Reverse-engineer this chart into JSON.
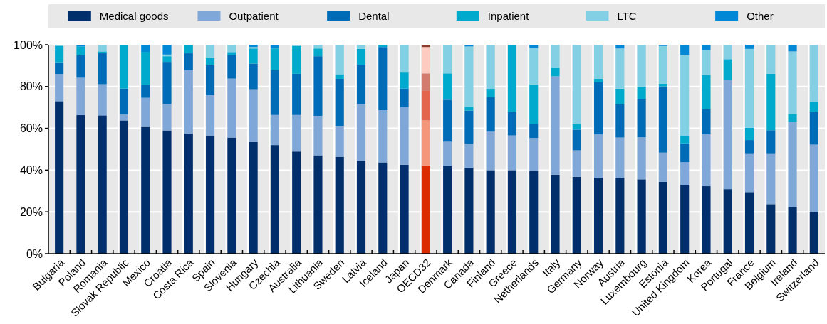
{
  "chart_data": {
    "type": "bar",
    "stacked": true,
    "grid": true,
    "legend": "top",
    "categories": [
      "Bulgaria",
      "Poland",
      "Romania",
      "Slovak Republic",
      "Mexico",
      "Croatia",
      "Costa Rica",
      "Spain",
      "Slovenia",
      "Hungary",
      "Czechia",
      "Australia",
      "Lithuania",
      "Sweden",
      "Latvia",
      "Iceland",
      "Japan",
      "OECD32",
      "Denmark",
      "Canada",
      "Finland",
      "Greece",
      "Netherlands",
      "Italy",
      "Germany",
      "Norway",
      "Austria",
      "Luxembourg",
      "Estonia",
      "United Kingdom",
      "Korea",
      "Portugal",
      "France",
      "Belgium",
      "Ireland",
      "Switzerland"
    ],
    "ylim": [
      0,
      100
    ],
    "yticks": [
      {
        "value": 0,
        "label": "0%"
      },
      {
        "value": 20,
        "label": "20%"
      },
      {
        "value": 40,
        "label": "40%"
      },
      {
        "value": 60,
        "label": "60%"
      },
      {
        "value": 80,
        "label": "80%"
      },
      {
        "value": 100,
        "label": "100%"
      }
    ],
    "series": [
      {
        "name": "Medical goods",
        "color": "#002f6c",
        "colors": [
          "#002f6c",
          "#002f6c",
          "#002f6c",
          "#002f6c",
          "#002f6c",
          "#002f6c",
          "#002f6c",
          "#002f6c",
          "#002f6c",
          "#002f6c",
          "#002f6c",
          "#002f6c",
          "#002f6c",
          "#002f6c",
          "#002f6c",
          "#002f6c",
          "#002f6c",
          "#dd2b00",
          "#002f6c",
          "#002f6c",
          "#002f6c",
          "#002f6c",
          "#002f6c",
          "#002f6c",
          "#002f6c",
          "#002f6c",
          "#002f6c",
          "#002f6c",
          "#002f6c",
          "#002f6c",
          "#002f6c",
          "#002f6c",
          "#002f6c",
          "#002f6c",
          "#002f6c",
          "#002f6c"
        ],
        "values": [
          73,
          66.4,
          66.2,
          63.8,
          60.7,
          59,
          57.6,
          56.3,
          55.6,
          53.5,
          52,
          48.9,
          47.1,
          46.4,
          44.5,
          43.7,
          42.6,
          42.2,
          42.2,
          41.2,
          40,
          40,
          39.5,
          37.5,
          36.8,
          36.4,
          36.4,
          35.6,
          34.4,
          33,
          32.3,
          30.9,
          29.5,
          23.7,
          22.4,
          20
        ]
      },
      {
        "name": "Outpatient",
        "color": "#7fa8d9",
        "colors": [
          "#7fa8d9",
          "#7fa8d9",
          "#7fa8d9",
          "#7fa8d9",
          "#7fa8d9",
          "#7fa8d9",
          "#7fa8d9",
          "#7fa8d9",
          "#7fa8d9",
          "#7fa8d9",
          "#7fa8d9",
          "#7fa8d9",
          "#7fa8d9",
          "#7fa8d9",
          "#7fa8d9",
          "#7fa8d9",
          "#7fa8d9",
          "#f4967a",
          "#7fa8d9",
          "#7fa8d9",
          "#7fa8d9",
          "#7fa8d9",
          "#7fa8d9",
          "#7fa8d9",
          "#7fa8d9",
          "#7fa8d9",
          "#7fa8d9",
          "#7fa8d9",
          "#7fa8d9",
          "#7fa8d9",
          "#7fa8d9",
          "#7fa8d9",
          "#7fa8d9",
          "#7fa8d9",
          "#7fa8d9",
          "#7fa8d9"
        ],
        "values": [
          13,
          17.8,
          14.9,
          2.8,
          13.9,
          12.7,
          30.2,
          19.6,
          28.2,
          25.2,
          14.4,
          17.5,
          18.9,
          14.8,
          27.2,
          25,
          27.5,
          21.6,
          11.4,
          11.4,
          18.4,
          16.6,
          15.9,
          47.4,
          12.7,
          20.7,
          19.2,
          20.1,
          14,
          10.8,
          24.8,
          52.2,
          18.2,
          24,
          40.5,
          32.2
        ]
      },
      {
        "name": "Dental",
        "color": "#006bb6",
        "colors": [
          "#006bb6",
          "#006bb6",
          "#006bb6",
          "#006bb6",
          "#006bb6",
          "#006bb6",
          "#006bb6",
          "#006bb6",
          "#006bb6",
          "#006bb6",
          "#006bb6",
          "#006bb6",
          "#006bb6",
          "#006bb6",
          "#006bb6",
          "#006bb6",
          "#006bb6",
          "#e4654d",
          "#006bb6",
          "#006bb6",
          "#006bb6",
          "#006bb6",
          "#006bb6",
          "#006bb6",
          "#006bb6",
          "#006bb6",
          "#006bb6",
          "#006bb6",
          "#006bb6",
          "#006bb6",
          "#006bb6",
          "#006bb6",
          "#006bb6",
          "#006bb6",
          "#006bb6",
          "#006bb6"
        ],
        "values": [
          5.6,
          10.8,
          14.8,
          12.4,
          6.2,
          20.1,
          8.1,
          14.4,
          11.4,
          12.3,
          21.4,
          19.7,
          28.5,
          22.5,
          18.6,
          30.2,
          8.9,
          14.1,
          20.1,
          15.9,
          16.5,
          11.2,
          6.8,
          0,
          9.9,
          25.1,
          15.9,
          18.3,
          31.7,
          9,
          12.1,
          0,
          6.7,
          11.4,
          0,
          15.6
        ]
      },
      {
        "name": "Inpatient",
        "color": "#00aacc",
        "colors": [
          "#00aacc",
          "#00aacc",
          "#00aacc",
          "#00aacc",
          "#00aacc",
          "#00aacc",
          "#00aacc",
          "#00aacc",
          "#00aacc",
          "#00aacc",
          "#00aacc",
          "#00aacc",
          "#00aacc",
          "#00aacc",
          "#00aacc",
          "#00aacc",
          "#00aacc",
          "#d37c6d",
          "#00aacc",
          "#00aacc",
          "#00aacc",
          "#00aacc",
          "#00aacc",
          "#00aacc",
          "#00aacc",
          "#00aacc",
          "#00aacc",
          "#00aacc",
          "#00aacc",
          "#00aacc",
          "#00aacc",
          "#00aacc",
          "#00aacc",
          "#00aacc",
          "#00aacc",
          "#00aacc"
        ],
        "values": [
          7.9,
          4.2,
          0.9,
          21,
          15.8,
          2.7,
          4.1,
          3.4,
          1.3,
          7.2,
          10.4,
          13.3,
          3.7,
          2.2,
          7.7,
          1.1,
          7.7,
          8.4,
          12.6,
          1.8,
          4,
          32.2,
          18.8,
          4.1,
          2.5,
          1.6,
          7.5,
          6,
          1.3,
          3.6,
          16.4,
          10,
          5.9,
          27,
          4,
          4.7
        ]
      },
      {
        "name": "LTC",
        "color": "#83d0e4",
        "colors": [
          "#83d0e4",
          "#83d0e4",
          "#83d0e4",
          "#83d0e4",
          "#83d0e4",
          "#83d0e4",
          "#83d0e4",
          "#83d0e4",
          "#83d0e4",
          "#83d0e4",
          "#83d0e4",
          "#83d0e4",
          "#83d0e4",
          "#83d0e4",
          "#83d0e4",
          "#83d0e4",
          "#83d0e4",
          "#fdcbc0",
          "#83d0e4",
          "#83d0e4",
          "#83d0e4",
          "#83d0e4",
          "#83d0e4",
          "#83d0e4",
          "#83d0e4",
          "#83d0e4",
          "#83d0e4",
          "#83d0e4",
          "#83d0e4",
          "#83d0e4",
          "#83d0e4",
          "#83d0e4",
          "#83d0e4",
          "#83d0e4",
          "#83d0e4",
          "#83d0e4"
        ],
        "values": [
          0.5,
          0,
          3,
          0,
          0,
          0.8,
          0,
          6.3,
          3.5,
          0.7,
          0,
          0.4,
          1.8,
          13.9,
          1.8,
          0,
          13.3,
          12.6,
          13.7,
          28.9,
          20.9,
          0,
          17.6,
          11,
          38.1,
          16,
          19.2,
          20,
          18,
          38.7,
          11.8,
          6.7,
          37.7,
          13.9,
          29.9,
          27.5
        ]
      },
      {
        "name": "Other",
        "color": "#0088d6",
        "colors": [
          "#0088d6",
          "#0088d6",
          "#0088d6",
          "#0088d6",
          "#0088d6",
          "#0088d6",
          "#0088d6",
          "#0088d6",
          "#0088d6",
          "#0088d6",
          "#0088d6",
          "#0088d6",
          "#0088d6",
          "#0088d6",
          "#0088d6",
          "#0088d6",
          "#0088d6",
          "#8c3b2e",
          "#0088d6",
          "#0088d6",
          "#0088d6",
          "#0088d6",
          "#0088d6",
          "#0088d6",
          "#0088d6",
          "#0088d6",
          "#0088d6",
          "#0088d6",
          "#0088d6",
          "#0088d6",
          "#0088d6",
          "#0088d6",
          "#0088d6",
          "#0088d6",
          "#0088d6",
          "#0088d6"
        ],
        "values": [
          0,
          0.8,
          0.2,
          0,
          3.4,
          4.7,
          0,
          0,
          0,
          1.1,
          1.8,
          0.2,
          0,
          0.2,
          0.2,
          0,
          0,
          1.1,
          0,
          0.8,
          0.2,
          0,
          1.4,
          0,
          0,
          0.2,
          1.8,
          0,
          0.6,
          4.9,
          2.6,
          0.2,
          2,
          0,
          3.2,
          0
        ]
      }
    ]
  }
}
